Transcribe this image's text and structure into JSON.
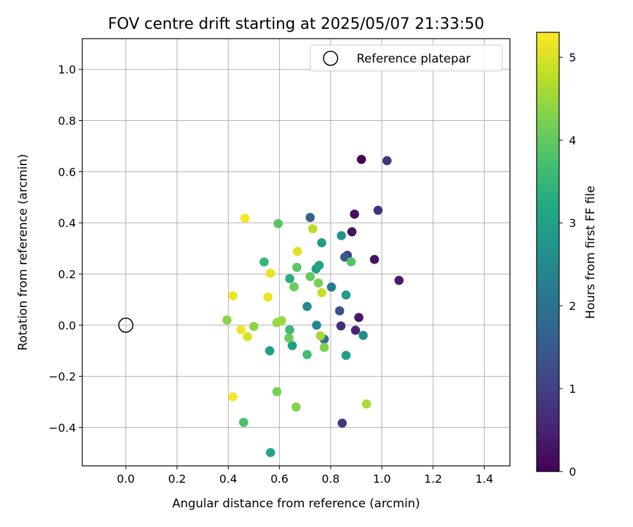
{
  "chart_data": {
    "type": "scatter",
    "title": "FOV centre drift starting at 2025/05/07 21:33:50",
    "xlabel": "Angular distance from reference (arcmin)",
    "ylabel": "Rotation from reference (arcmin)",
    "xlim": [
      -0.17,
      1.5
    ],
    "ylim": [
      -0.55,
      1.12
    ],
    "xticks": [
      0.0,
      0.2,
      0.4,
      0.6,
      0.8,
      1.0,
      1.2,
      1.4
    ],
    "xtick_labels": [
      "0.0",
      "0.2",
      "0.4",
      "0.6",
      "0.8",
      "1.0",
      "1.2",
      "1.4"
    ],
    "yticks": [
      -0.4,
      -0.2,
      0.0,
      0.2,
      0.4,
      0.6,
      0.8,
      1.0
    ],
    "ytick_labels": [
      "−0.4",
      "−0.2",
      "0.0",
      "0.2",
      "0.4",
      "0.6",
      "0.8",
      "1.0"
    ],
    "grid": true,
    "legend": {
      "label": "Reference platepar",
      "placement": "top-right"
    },
    "reference_point": {
      "x": 0.0,
      "y": 0.0
    },
    "colorbar": {
      "label": "Hours from first FF file",
      "min": 0,
      "max": 5.3,
      "ticks": [
        0,
        1,
        2,
        3,
        4,
        5
      ],
      "tick_labels": [
        "0",
        "1",
        "2",
        "3",
        "4",
        "5"
      ],
      "colormap": "viridis"
    },
    "points": [
      {
        "x": 0.92,
        "y": 0.648,
        "c": 0.05
      },
      {
        "x": 0.893,
        "y": 0.434,
        "c": 0.2
      },
      {
        "x": 0.883,
        "y": 0.365,
        "c": 0.25
      },
      {
        "x": 0.971,
        "y": 0.257,
        "c": 0.3
      },
      {
        "x": 1.067,
        "y": 0.175,
        "c": 0.4
      },
      {
        "x": 0.91,
        "y": 0.03,
        "c": 0.35
      },
      {
        "x": 0.897,
        "y": -0.02,
        "c": 0.55
      },
      {
        "x": 0.84,
        "y": -0.003,
        "c": 0.7
      },
      {
        "x": 1.02,
        "y": 0.643,
        "c": 0.8
      },
      {
        "x": 0.985,
        "y": 0.449,
        "c": 0.75
      },
      {
        "x": 0.865,
        "y": 0.273,
        "c": 0.9
      },
      {
        "x": 0.845,
        "y": -0.383,
        "c": 0.85
      },
      {
        "x": 0.835,
        "y": 0.056,
        "c": 1.3
      },
      {
        "x": 0.855,
        "y": 0.266,
        "c": 1.5
      },
      {
        "x": 0.72,
        "y": 0.421,
        "c": 1.6
      },
      {
        "x": 0.775,
        "y": -0.055,
        "c": 1.9
      },
      {
        "x": 0.803,
        "y": 0.149,
        "c": 2.2
      },
      {
        "x": 0.745,
        "y": 0.0,
        "c": 2.4
      },
      {
        "x": 0.708,
        "y": 0.073,
        "c": 2.5
      },
      {
        "x": 0.927,
        "y": -0.04,
        "c": 2.55
      },
      {
        "x": 0.842,
        "y": 0.35,
        "c": 2.75
      },
      {
        "x": 0.86,
        "y": 0.118,
        "c": 2.8
      },
      {
        "x": 0.765,
        "y": 0.322,
        "c": 2.9
      },
      {
        "x": 0.743,
        "y": 0.22,
        "c": 3.0
      },
      {
        "x": 0.755,
        "y": 0.234,
        "c": 3.1
      },
      {
        "x": 0.562,
        "y": -0.1,
        "c": 2.9
      },
      {
        "x": 0.65,
        "y": -0.08,
        "c": 3.0
      },
      {
        "x": 0.86,
        "y": -0.118,
        "c": 3.0
      },
      {
        "x": 0.565,
        "y": -0.498,
        "c": 3.1
      },
      {
        "x": 0.64,
        "y": 0.182,
        "c": 3.3
      },
      {
        "x": 0.54,
        "y": 0.247,
        "c": 3.5
      },
      {
        "x": 0.64,
        "y": -0.018,
        "c": 3.55
      },
      {
        "x": 0.708,
        "y": -0.115,
        "c": 3.65
      },
      {
        "x": 0.46,
        "y": -0.38,
        "c": 3.75
      },
      {
        "x": 0.595,
        "y": 0.397,
        "c": 3.9
      },
      {
        "x": 0.88,
        "y": 0.248,
        "c": 3.85
      },
      {
        "x": 0.668,
        "y": 0.226,
        "c": 3.95
      },
      {
        "x": 0.72,
        "y": 0.19,
        "c": 4.0
      },
      {
        "x": 0.657,
        "y": 0.15,
        "c": 4.1
      },
      {
        "x": 0.752,
        "y": 0.165,
        "c": 4.2
      },
      {
        "x": 0.637,
        "y": -0.05,
        "c": 4.1
      },
      {
        "x": 0.59,
        "y": -0.26,
        "c": 4.2
      },
      {
        "x": 0.665,
        "y": -0.32,
        "c": 4.3
      },
      {
        "x": 0.775,
        "y": -0.087,
        "c": 4.25
      },
      {
        "x": 0.395,
        "y": 0.02,
        "c": 4.35
      },
      {
        "x": 0.5,
        "y": -0.005,
        "c": 4.4
      },
      {
        "x": 0.59,
        "y": 0.01,
        "c": 4.45
      },
      {
        "x": 0.608,
        "y": 0.018,
        "c": 4.5
      },
      {
        "x": 0.76,
        "y": -0.042,
        "c": 4.55
      },
      {
        "x": 0.94,
        "y": -0.308,
        "c": 4.6
      },
      {
        "x": 0.73,
        "y": 0.377,
        "c": 4.75
      },
      {
        "x": 0.765,
        "y": 0.127,
        "c": 4.85
      },
      {
        "x": 0.475,
        "y": -0.045,
        "c": 5.0
      },
      {
        "x": 0.67,
        "y": 0.288,
        "c": 5.05
      },
      {
        "x": 0.565,
        "y": 0.203,
        "c": 5.1
      },
      {
        "x": 0.418,
        "y": 0.115,
        "c": 5.15
      },
      {
        "x": 0.555,
        "y": 0.11,
        "c": 5.15
      },
      {
        "x": 0.45,
        "y": -0.018,
        "c": 5.2
      },
      {
        "x": 0.465,
        "y": 0.418,
        "c": 5.25
      },
      {
        "x": 0.418,
        "y": -0.28,
        "c": 5.25
      }
    ]
  }
}
